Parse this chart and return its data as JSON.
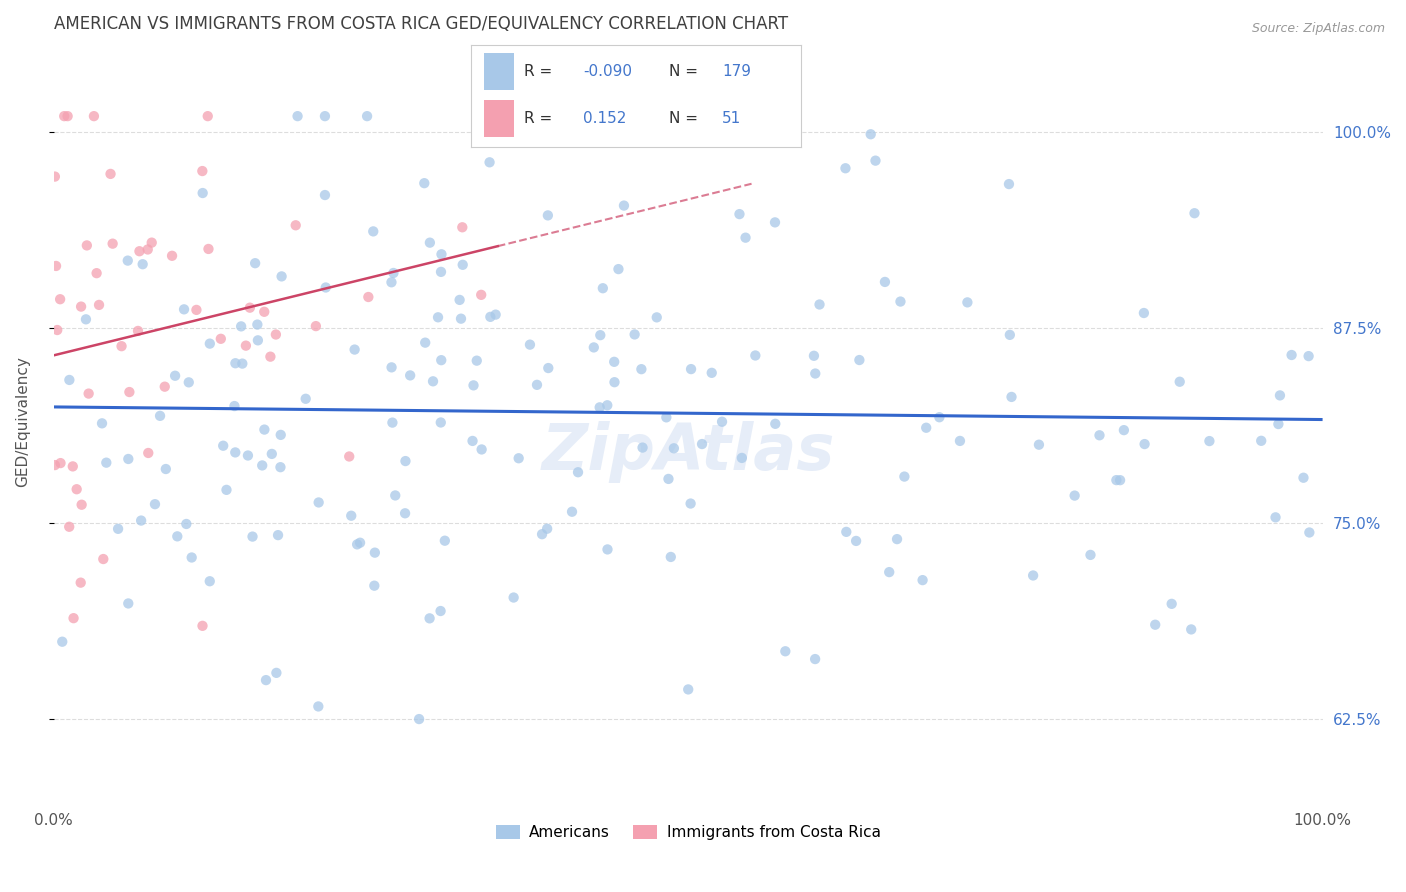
{
  "title": "AMERICAN VS IMMIGRANTS FROM COSTA RICA GED/EQUIVALENCY CORRELATION CHART",
  "source": "Source: ZipAtlas.com",
  "ylabel": "GED/Equivalency",
  "ytick_labels": [
    "100.0%",
    "87.5%",
    "75.0%",
    "62.5%"
  ],
  "ytick_values": [
    1.0,
    0.875,
    0.75,
    0.625
  ],
  "xmin": 0.0,
  "xmax": 1.0,
  "ymin": 0.575,
  "ymax": 1.055,
  "americans_R": -0.09,
  "americans_N": 179,
  "costa_rica_R": 0.152,
  "costa_rica_N": 51,
  "americans_color": "#a8c8e8",
  "costa_rica_color": "#f4a0b0",
  "americans_line_color": "#3366cc",
  "costa_rica_line_color": "#cc4466",
  "watermark": "ZipAtlas",
  "background_color": "#ffffff",
  "grid_color": "#dddddd",
  "title_color": "#404040",
  "axis_label_color": "#555555",
  "right_axis_color": "#4477cc",
  "seed_americans": 77,
  "seed_costa_rica": 55
}
